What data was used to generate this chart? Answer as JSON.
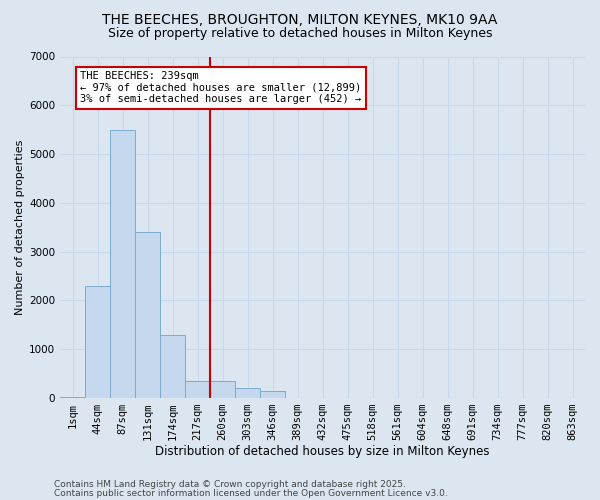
{
  "title1": "THE BEECHES, BROUGHTON, MILTON KEYNES, MK10 9AA",
  "title2": "Size of property relative to detached houses in Milton Keynes",
  "xlabel": "Distribution of detached houses by size in Milton Keynes",
  "ylabel": "Number of detached properties",
  "bin_labels": [
    "1sqm",
    "44sqm",
    "87sqm",
    "131sqm",
    "174sqm",
    "217sqm",
    "260sqm",
    "303sqm",
    "346sqm",
    "389sqm",
    "432sqm",
    "475sqm",
    "518sqm",
    "561sqm",
    "604sqm",
    "648sqm",
    "691sqm",
    "734sqm",
    "777sqm",
    "820sqm",
    "863sqm"
  ],
  "bar_heights": [
    30,
    2300,
    5500,
    3400,
    1300,
    350,
    350,
    200,
    150,
    0,
    0,
    0,
    0,
    0,
    0,
    0,
    0,
    0,
    0,
    0,
    0
  ],
  "bar_color": "#c5d8ee",
  "bar_edge_color": "#7aabcf",
  "background_color": "#dce6f1",
  "grid_color": "#c8d8ec",
  "vline_x": 5.5,
  "vline_color": "#cc0000",
  "annotation_text": "THE BEECHES: 239sqm\n← 97% of detached houses are smaller (12,899)\n3% of semi-detached houses are larger (452) →",
  "annotation_box_color": "#ffffff",
  "annotation_box_edge": "#cc0000",
  "ylim": [
    0,
    7000
  ],
  "yticks": [
    0,
    1000,
    2000,
    3000,
    4000,
    5000,
    6000,
    7000
  ],
  "footer1": "Contains HM Land Registry data © Crown copyright and database right 2025.",
  "footer2": "Contains public sector information licensed under the Open Government Licence v3.0.",
  "title1_fontsize": 10,
  "title2_fontsize": 9,
  "xlabel_fontsize": 8.5,
  "ylabel_fontsize": 8,
  "tick_fontsize": 7.5,
  "annotation_fontsize": 7.5,
  "footer_fontsize": 6.5
}
